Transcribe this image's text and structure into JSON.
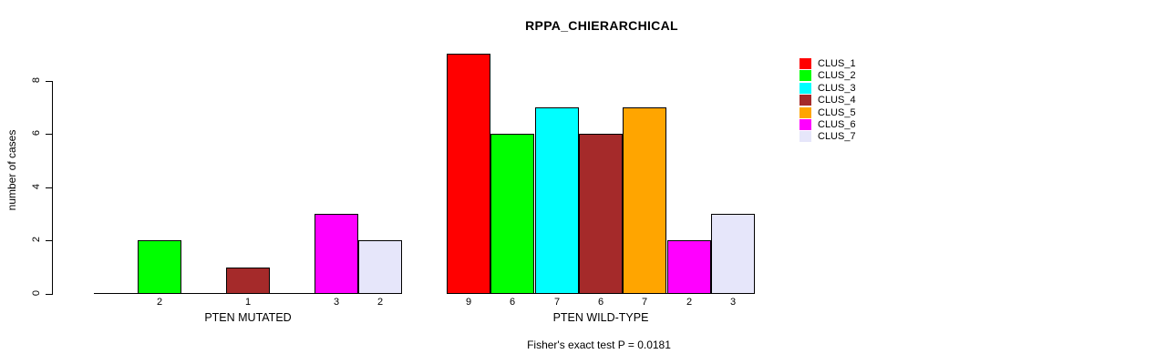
{
  "chart_data": {
    "type": "bar",
    "title": "RPPA_CHIERARCHICAL",
    "ylabel": "number of cases",
    "xlabel": "",
    "ylim": [
      0,
      9
    ],
    "yticks": [
      0,
      2,
      4,
      6,
      8
    ],
    "grid": false,
    "legend_position": "right",
    "categories": [
      "PTEN MUTATED",
      "PTEN WILD-TYPE"
    ],
    "series": [
      {
        "name": "CLUS_1",
        "color": "#FF0000",
        "values": [
          0,
          9
        ]
      },
      {
        "name": "CLUS_2",
        "color": "#00FF00",
        "values": [
          2,
          6
        ]
      },
      {
        "name": "CLUS_3",
        "color": "#00FFFF",
        "values": [
          0,
          7
        ]
      },
      {
        "name": "CLUS_4",
        "color": "#A52A2A",
        "values": [
          1,
          6
        ]
      },
      {
        "name": "CLUS_5",
        "color": "#FFA500",
        "values": [
          0,
          7
        ]
      },
      {
        "name": "CLUS_6",
        "color": "#FF00FF",
        "values": [
          3,
          2
        ]
      },
      {
        "name": "CLUS_7",
        "color": "#E6E6FA",
        "values": [
          2,
          3
        ]
      }
    ],
    "show_value_labels": true,
    "hide_zero_value_labels": true,
    "annotation": "Fisher's exact test P = 0.0181",
    "axis_color": "#000000",
    "bar_border_color": "#000000"
  }
}
